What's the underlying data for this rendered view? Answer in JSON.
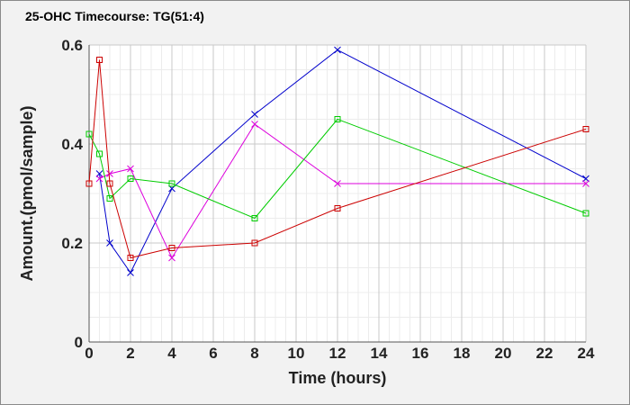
{
  "chart_data": {
    "type": "line",
    "title": "25-OHC Timecourse: TG(51:4)",
    "xlabel": "Time (hours)",
    "ylabel": "Amount.(pmol/sample)",
    "xlim": [
      0,
      24
    ],
    "ylim": [
      0,
      0.6
    ],
    "x_ticks": [
      "0",
      "2",
      "4",
      "6",
      "8",
      "10",
      "12",
      "14",
      "16",
      "18",
      "20",
      "22",
      "24"
    ],
    "y_ticks": [
      "0",
      "0.2",
      "0.4",
      "0.6"
    ],
    "grid": true,
    "legend": "none",
    "series": [
      {
        "color": "#0000cc",
        "marker": "x",
        "points": [
          [
            0.5,
            0.34
          ],
          [
            1,
            0.2
          ],
          [
            2,
            0.14
          ],
          [
            4,
            0.31
          ],
          [
            8,
            0.46
          ],
          [
            12,
            0.59
          ],
          [
            24,
            0.33
          ]
        ]
      },
      {
        "color": "#dd00dd",
        "marker": "x",
        "points": [
          [
            0.5,
            0.33
          ],
          [
            1,
            0.34
          ],
          [
            2,
            0.35
          ],
          [
            4,
            0.17
          ],
          [
            8,
            0.44
          ],
          [
            12,
            0.32
          ],
          [
            24,
            0.32
          ]
        ]
      },
      {
        "color": "#00cc00",
        "marker": "square",
        "points": [
          [
            0,
            0.42
          ],
          [
            0.5,
            0.38
          ],
          [
            1,
            0.29
          ],
          [
            2,
            0.33
          ],
          [
            4,
            0.32
          ],
          [
            8,
            0.25
          ],
          [
            12,
            0.45
          ],
          [
            24,
            0.26
          ]
        ]
      },
      {
        "color": "#cc0000",
        "marker": "square",
        "points": [
          [
            0,
            0.32
          ],
          [
            0.5,
            0.57
          ],
          [
            1,
            0.32
          ],
          [
            2,
            0.17
          ],
          [
            4,
            0.19
          ],
          [
            8,
            0.2
          ],
          [
            12,
            0.27
          ],
          [
            24,
            0.43
          ]
        ]
      }
    ]
  }
}
